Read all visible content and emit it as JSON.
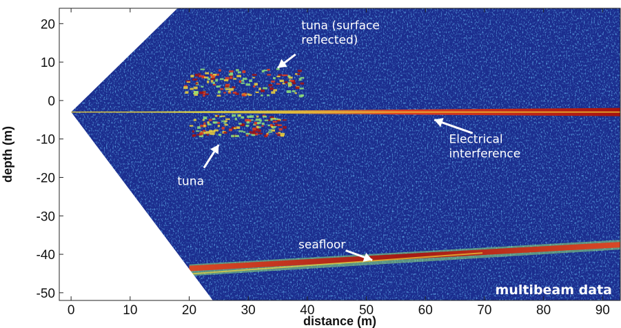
{
  "chart_data": {
    "type": "heatmap",
    "title": "",
    "xlabel": "distance (m)",
    "ylabel": "depth (m)",
    "xlim": [
      -2,
      93
    ],
    "ylim": [
      -52,
      24
    ],
    "x_ticks": [
      "0",
      "10",
      "20",
      "30",
      "40",
      "50",
      "60",
      "70",
      "80",
      "90"
    ],
    "y_ticks": [
      "20",
      "10",
      "0",
      "-10",
      "-20",
      "-30",
      "-40",
      "-50"
    ],
    "grid": false,
    "colormap": [
      "#1a2d8c",
      "#1f5bd1",
      "#22b6d8",
      "#8fe37a",
      "#f0d43a",
      "#e6401c",
      "#a6120e"
    ],
    "background_color": "#1b2d8e",
    "sonar_origin": [
      0,
      -3
    ],
    "swath_top_edge": [
      [
        0,
        -3
      ],
      [
        18,
        24
      ]
    ],
    "swath_bottom_edge": [
      [
        0,
        -3
      ],
      [
        24,
        -52
      ]
    ],
    "features": {
      "interference_line": {
        "start": [
          0,
          -3
        ],
        "end": [
          93,
          -3
        ]
      },
      "seafloor": {
        "start": [
          20,
          -43.5
        ],
        "end": [
          93,
          -37.5
        ]
      },
      "tuna_reflected": {
        "x_range": [
          19,
          39
        ],
        "y_range": [
          1.5,
          8.5
        ]
      },
      "tuna": {
        "x_range": [
          20,
          36
        ],
        "y_range": [
          -9,
          -3.5
        ]
      }
    },
    "annotations": [
      {
        "id": "tuna_reflected",
        "lines": [
          "tuna (surface",
          "reflected)"
        ],
        "text_at": [
          39,
          18.5
        ],
        "arrow_from": [
          38,
          12
        ],
        "arrow_to": [
          35,
          8.5
        ]
      },
      {
        "id": "tuna",
        "lines": [
          "tuna"
        ],
        "text_at": [
          18,
          -22
        ],
        "arrow_from": [
          22.5,
          -17.5
        ],
        "arrow_to": [
          25,
          -11.5
        ]
      },
      {
        "id": "interference",
        "lines": [
          "Electrical",
          "interference"
        ],
        "text_at": [
          64,
          -11
        ],
        "arrow_from": [
          68,
          -8.5
        ],
        "arrow_to": [
          61.5,
          -5
        ]
      },
      {
        "id": "seafloor",
        "lines": [
          "seafloor"
        ],
        "text_at": [
          38.5,
          -38.5
        ],
        "arrow_from": [
          46.5,
          -39
        ],
        "arrow_to": [
          51,
          -41.5
        ]
      }
    ],
    "label_box": "multibeam data"
  }
}
